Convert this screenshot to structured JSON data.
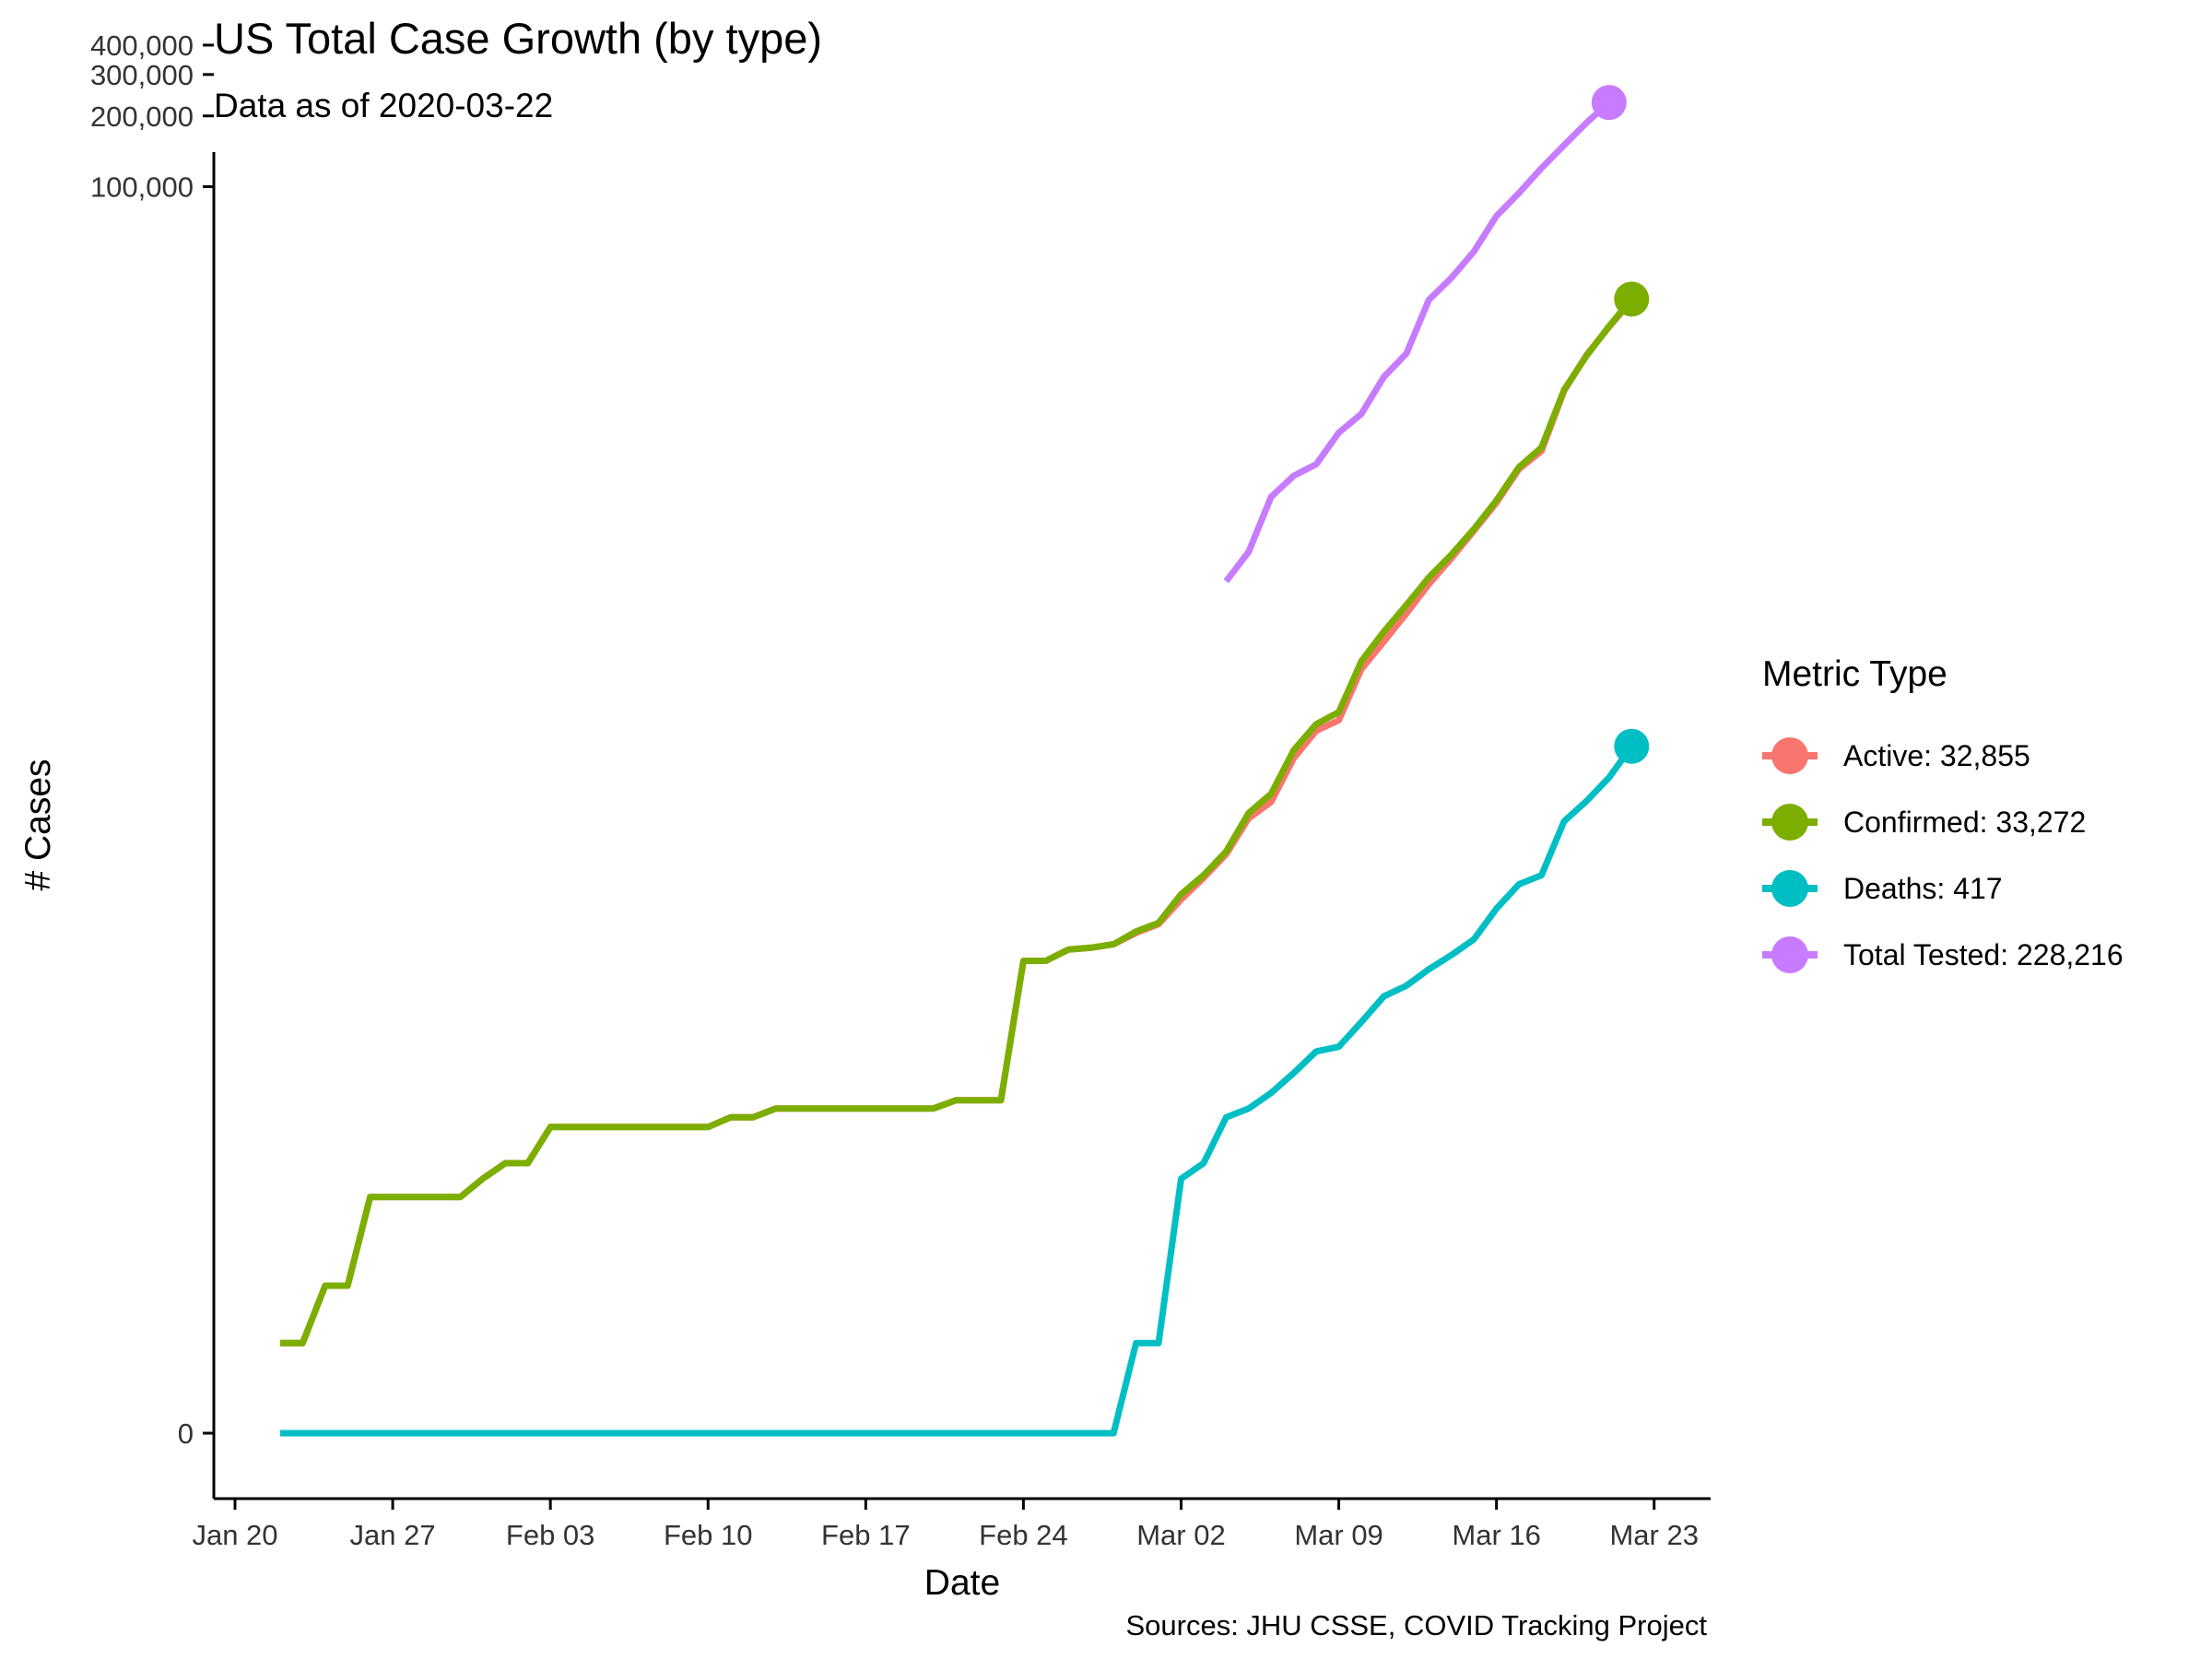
{
  "header": {
    "title": "US Total Case Growth (by type)",
    "subtitle": "Data as of 2020-03-22"
  },
  "caption": "Sources: JHU CSSE, COVID Tracking Project",
  "legend": {
    "title": "Metric Type",
    "items": [
      {
        "label": "Active: 32,855",
        "color": "#F8766D"
      },
      {
        "label": "Confirmed: 33,272",
        "color": "#7CAE00"
      },
      {
        "label": "Deaths: 417",
        "color": "#00BFC4"
      },
      {
        "label": "Total Tested: 228,216",
        "color": "#C77CFF"
      }
    ]
  },
  "chart_data": {
    "type": "line",
    "title": "US Total Case Growth (by type)",
    "subtitle": "Data as of 2020-03-22",
    "xlabel": "Date",
    "ylabel": "# Cases",
    "yscale": "log",
    "x_axis": {
      "ticks": [
        {
          "date": "2020-01-20",
          "label": "Jan 20"
        },
        {
          "date": "2020-01-27",
          "label": "Jan 27"
        },
        {
          "date": "2020-02-03",
          "label": "Feb 03"
        },
        {
          "date": "2020-02-10",
          "label": "Feb 10"
        },
        {
          "date": "2020-02-17",
          "label": "Feb 17"
        },
        {
          "date": "2020-02-24",
          "label": "Feb 24"
        },
        {
          "date": "2020-03-02",
          "label": "Mar 02"
        },
        {
          "date": "2020-03-09",
          "label": "Mar 09"
        },
        {
          "date": "2020-03-16",
          "label": "Mar 16"
        },
        {
          "date": "2020-03-23",
          "label": "Mar 23"
        }
      ]
    },
    "y_axis": {
      "ticks": [
        {
          "value": 0,
          "label": "0"
        },
        {
          "value": 100000,
          "label": "100,000"
        },
        {
          "value": 200000,
          "label": "200,000"
        },
        {
          "value": 300000,
          "label": "300,000"
        },
        {
          "value": 400000,
          "label": "400,000"
        }
      ]
    },
    "grid": false,
    "legend_position": "right",
    "series": [
      {
        "name": "Active: 32,855",
        "color": "#F8766D",
        "points": [
          [
            "2020-01-22",
            1
          ],
          [
            "2020-01-23",
            1
          ],
          [
            "2020-01-24",
            2
          ],
          [
            "2020-01-25",
            2
          ],
          [
            "2020-01-26",
            5
          ],
          [
            "2020-01-27",
            5
          ],
          [
            "2020-01-28",
            5
          ],
          [
            "2020-01-29",
            5
          ],
          [
            "2020-01-30",
            5
          ],
          [
            "2020-01-31",
            6
          ],
          [
            "2020-02-01",
            7
          ],
          [
            "2020-02-02",
            7
          ],
          [
            "2020-02-03",
            10
          ],
          [
            "2020-02-04",
            10
          ],
          [
            "2020-02-05",
            10
          ],
          [
            "2020-02-06",
            10
          ],
          [
            "2020-02-07",
            10
          ],
          [
            "2020-02-08",
            10
          ],
          [
            "2020-02-09",
            10
          ],
          [
            "2020-02-10",
            10
          ],
          [
            "2020-02-11",
            11
          ],
          [
            "2020-02-12",
            11
          ],
          [
            "2020-02-13",
            12
          ],
          [
            "2020-02-14",
            12
          ],
          [
            "2020-02-15",
            12
          ],
          [
            "2020-02-16",
            12
          ],
          [
            "2020-02-17",
            12
          ],
          [
            "2020-02-18",
            12
          ],
          [
            "2020-02-19",
            12
          ],
          [
            "2020-02-20",
            12
          ],
          [
            "2020-02-21",
            13
          ],
          [
            "2020-02-22",
            13
          ],
          [
            "2020-02-23",
            13
          ],
          [
            "2020-02-24",
            51
          ],
          [
            "2020-02-25",
            51
          ],
          [
            "2020-02-26",
            57
          ],
          [
            "2020-02-27",
            58
          ],
          [
            "2020-02-28",
            60
          ],
          [
            "2020-02-29",
            67
          ],
          [
            "2020-03-01",
            73
          ],
          [
            "2020-03-02",
            93
          ],
          [
            "2020-03-03",
            115
          ],
          [
            "2020-03-04",
            145
          ],
          [
            "2020-03-05",
            206
          ],
          [
            "2020-03-06",
            242
          ],
          [
            "2020-03-07",
            371
          ],
          [
            "2020-03-08",
            486
          ],
          [
            "2020-03-09",
            538
          ],
          [
            "2020-03-10",
            887
          ],
          [
            "2020-03-11",
            1161
          ],
          [
            "2020-03-12",
            1530
          ],
          [
            "2020-03-13",
            2038
          ],
          [
            "2020-03-14",
            2633
          ],
          [
            "2020-03-15",
            3440
          ],
          [
            "2020-03-16",
            4531
          ],
          [
            "2020-03-17",
            6296
          ],
          [
            "2020-03-18",
            7520
          ],
          [
            "2020-03-19",
            13525
          ],
          [
            "2020-03-20",
            19249
          ],
          [
            "2020-03-21",
            25313
          ],
          [
            "2020-03-22",
            32855
          ]
        ]
      },
      {
        "name": "Confirmed: 33,272",
        "color": "#7CAE00",
        "points": [
          [
            "2020-01-22",
            1
          ],
          [
            "2020-01-23",
            1
          ],
          [
            "2020-01-24",
            2
          ],
          [
            "2020-01-25",
            2
          ],
          [
            "2020-01-26",
            5
          ],
          [
            "2020-01-27",
            5
          ],
          [
            "2020-01-28",
            5
          ],
          [
            "2020-01-29",
            5
          ],
          [
            "2020-01-30",
            5
          ],
          [
            "2020-01-31",
            6
          ],
          [
            "2020-02-01",
            7
          ],
          [
            "2020-02-02",
            7
          ],
          [
            "2020-02-03",
            10
          ],
          [
            "2020-02-04",
            10
          ],
          [
            "2020-02-05",
            10
          ],
          [
            "2020-02-06",
            10
          ],
          [
            "2020-02-07",
            10
          ],
          [
            "2020-02-08",
            10
          ],
          [
            "2020-02-09",
            10
          ],
          [
            "2020-02-10",
            10
          ],
          [
            "2020-02-11",
            11
          ],
          [
            "2020-02-12",
            11
          ],
          [
            "2020-02-13",
            12
          ],
          [
            "2020-02-14",
            12
          ],
          [
            "2020-02-15",
            12
          ],
          [
            "2020-02-16",
            12
          ],
          [
            "2020-02-17",
            12
          ],
          [
            "2020-02-18",
            12
          ],
          [
            "2020-02-19",
            12
          ],
          [
            "2020-02-20",
            12
          ],
          [
            "2020-02-21",
            13
          ],
          [
            "2020-02-22",
            13
          ],
          [
            "2020-02-23",
            13
          ],
          [
            "2020-02-24",
            51
          ],
          [
            "2020-02-25",
            51
          ],
          [
            "2020-02-26",
            57
          ],
          [
            "2020-02-27",
            58
          ],
          [
            "2020-02-28",
            60
          ],
          [
            "2020-02-29",
            68
          ],
          [
            "2020-03-01",
            74
          ],
          [
            "2020-03-02",
            98
          ],
          [
            "2020-03-03",
            118
          ],
          [
            "2020-03-04",
            149
          ],
          [
            "2020-03-05",
            217
          ],
          [
            "2020-03-06",
            262
          ],
          [
            "2020-03-07",
            402
          ],
          [
            "2020-03-08",
            518
          ],
          [
            "2020-03-09",
            583
          ],
          [
            "2020-03-10",
            959
          ],
          [
            "2020-03-11",
            1281
          ],
          [
            "2020-03-12",
            1663
          ],
          [
            "2020-03-13",
            2179
          ],
          [
            "2020-03-14",
            2727
          ],
          [
            "2020-03-15",
            3499
          ],
          [
            "2020-03-16",
            4632
          ],
          [
            "2020-03-17",
            6421
          ],
          [
            "2020-03-18",
            7783
          ],
          [
            "2020-03-19",
            13677
          ],
          [
            "2020-03-20",
            19100
          ],
          [
            "2020-03-21",
            25489
          ],
          [
            "2020-03-22",
            33272
          ]
        ]
      },
      {
        "name": "Deaths: 417",
        "color": "#00BFC4",
        "points": [
          [
            "2020-01-22",
            0
          ],
          [
            "2020-01-23",
            0
          ],
          [
            "2020-01-24",
            0
          ],
          [
            "2020-01-25",
            0
          ],
          [
            "2020-01-26",
            0
          ],
          [
            "2020-01-27",
            0
          ],
          [
            "2020-01-28",
            0
          ],
          [
            "2020-01-29",
            0
          ],
          [
            "2020-01-30",
            0
          ],
          [
            "2020-01-31",
            0
          ],
          [
            "2020-02-01",
            0
          ],
          [
            "2020-02-02",
            0
          ],
          [
            "2020-02-03",
            0
          ],
          [
            "2020-02-04",
            0
          ],
          [
            "2020-02-05",
            0
          ],
          [
            "2020-02-06",
            0
          ],
          [
            "2020-02-07",
            0
          ],
          [
            "2020-02-08",
            0
          ],
          [
            "2020-02-09",
            0
          ],
          [
            "2020-02-10",
            0
          ],
          [
            "2020-02-11",
            0
          ],
          [
            "2020-02-12",
            0
          ],
          [
            "2020-02-13",
            0
          ],
          [
            "2020-02-14",
            0
          ],
          [
            "2020-02-15",
            0
          ],
          [
            "2020-02-16",
            0
          ],
          [
            "2020-02-17",
            0
          ],
          [
            "2020-02-18",
            0
          ],
          [
            "2020-02-19",
            0
          ],
          [
            "2020-02-20",
            0
          ],
          [
            "2020-02-21",
            0
          ],
          [
            "2020-02-22",
            0
          ],
          [
            "2020-02-23",
            0
          ],
          [
            "2020-02-24",
            0
          ],
          [
            "2020-02-25",
            0
          ],
          [
            "2020-02-26",
            0
          ],
          [
            "2020-02-27",
            0
          ],
          [
            "2020-02-28",
            0
          ],
          [
            "2020-02-29",
            1
          ],
          [
            "2020-03-01",
            1
          ],
          [
            "2020-03-02",
            6
          ],
          [
            "2020-03-03",
            7
          ],
          [
            "2020-03-04",
            11
          ],
          [
            "2020-03-05",
            12
          ],
          [
            "2020-03-06",
            14
          ],
          [
            "2020-03-07",
            17
          ],
          [
            "2020-03-08",
            21
          ],
          [
            "2020-03-09",
            22
          ],
          [
            "2020-03-10",
            28
          ],
          [
            "2020-03-11",
            36
          ],
          [
            "2020-03-12",
            40
          ],
          [
            "2020-03-13",
            47
          ],
          [
            "2020-03-14",
            54
          ],
          [
            "2020-03-15",
            63
          ],
          [
            "2020-03-16",
            85
          ],
          [
            "2020-03-17",
            108
          ],
          [
            "2020-03-18",
            118
          ],
          [
            "2020-03-19",
            200
          ],
          [
            "2020-03-20",
            244
          ],
          [
            "2020-03-21",
            307
          ],
          [
            "2020-03-22",
            417
          ]
        ]
      },
      {
        "name": "Total Tested: 228,216",
        "color": "#C77CFF",
        "points": [
          [
            "2020-03-04",
            2100
          ],
          [
            "2020-03-05",
            2800
          ],
          [
            "2020-03-06",
            4800
          ],
          [
            "2020-03-07",
            5900
          ],
          [
            "2020-03-08",
            6600
          ],
          [
            "2020-03-09",
            9000
          ],
          [
            "2020-03-10",
            10800
          ],
          [
            "2020-03-11",
            15500
          ],
          [
            "2020-03-12",
            19500
          ],
          [
            "2020-03-13",
            33000
          ],
          [
            "2020-03-14",
            41000
          ],
          [
            "2020-03-15",
            53000
          ],
          [
            "2020-03-16",
            75000
          ],
          [
            "2020-03-17",
            94000
          ],
          [
            "2020-03-18",
            120000
          ],
          [
            "2020-03-19",
            150000
          ],
          [
            "2020-03-20",
            187000
          ],
          [
            "2020-03-21",
            228216
          ]
        ]
      }
    ]
  }
}
